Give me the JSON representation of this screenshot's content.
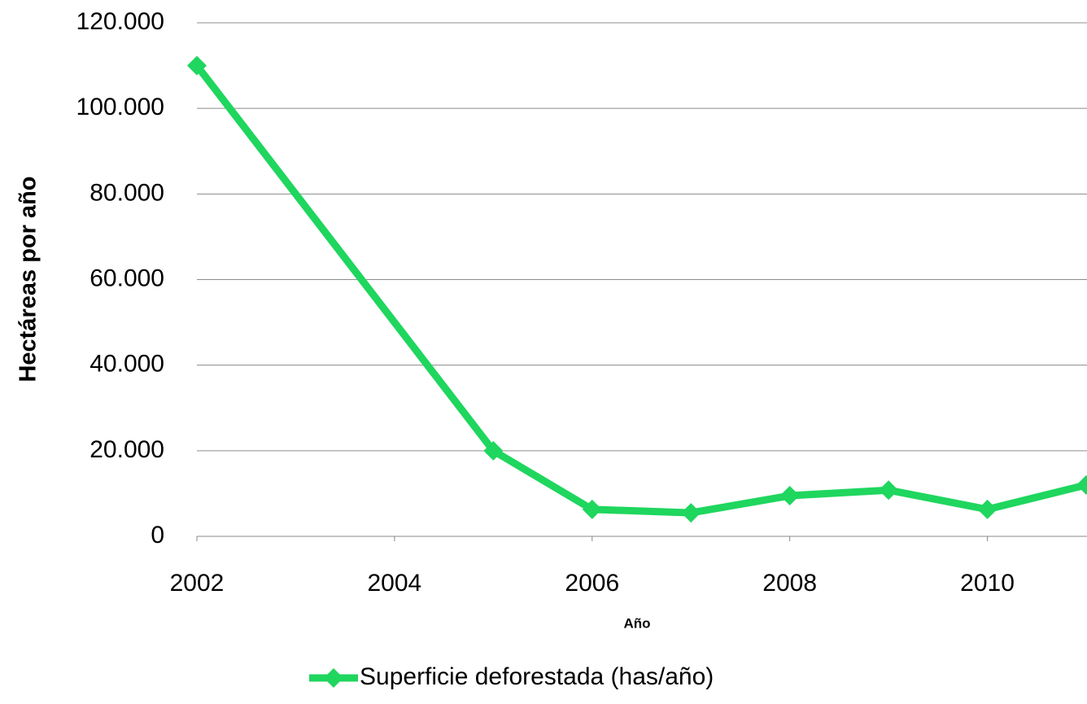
{
  "chart_data": {
    "type": "line",
    "x_label": "Año",
    "y_label": "Hectáreas por año",
    "x": [
      2002,
      2005,
      2006,
      2007,
      2008,
      2009,
      2010,
      2011
    ],
    "series": [
      {
        "name": "Superficie deforestada (has/año)",
        "color": "#1fd65e",
        "values": [
          110000,
          20000,
          6300,
          5500,
          9500,
          10800,
          6300,
          12000
        ]
      }
    ],
    "xlim": [
      2002,
      2011
    ],
    "xticks": [
      2002,
      2004,
      2006,
      2008,
      2010
    ],
    "ylim": [
      0,
      120000
    ],
    "yticks": [
      0,
      {
        "value": 20000,
        "label": "20.000"
      },
      {
        "value": 40000,
        "label": "40.000"
      },
      {
        "value": 60000,
        "label": "60.000"
      },
      {
        "value": 80000,
        "label": "80.000"
      },
      {
        "value": 100000,
        "label": "100.000"
      },
      {
        "value": 120000,
        "label": "120.000"
      }
    ],
    "grid": true,
    "legend": "bottom"
  }
}
